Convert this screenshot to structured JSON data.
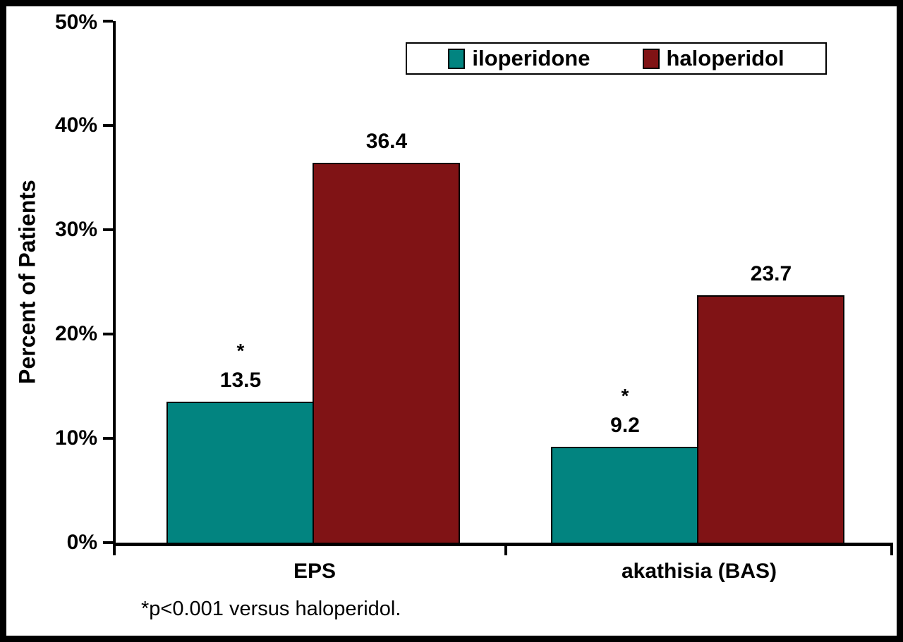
{
  "chart_data": {
    "type": "bar",
    "title": "",
    "xlabel": "",
    "ylabel": "Percent of Patients",
    "categories": [
      "EPS",
      "akathisia (BAS)"
    ],
    "series": [
      {
        "name": "iloperidone",
        "color": "#028480",
        "values": [
          13.5,
          9.2
        ],
        "starred": [
          true,
          true
        ]
      },
      {
        "name": "haloperidol",
        "color": "#801315",
        "values": [
          36.4,
          23.7
        ],
        "starred": [
          false,
          false
        ]
      }
    ],
    "y_ticks": [
      "0%",
      "10%",
      "20%",
      "30%",
      "40%",
      "50%"
    ],
    "ylim": [
      0,
      50
    ],
    "grid": false,
    "legend_position": "top-right-inside",
    "star_symbol": "*",
    "footnote": "*p<0.001 versus haloperidol."
  },
  "colors": {
    "iloperidone": "#028480",
    "haloperidol": "#801315",
    "axis": "#000000",
    "background": "#FFFFFF"
  }
}
